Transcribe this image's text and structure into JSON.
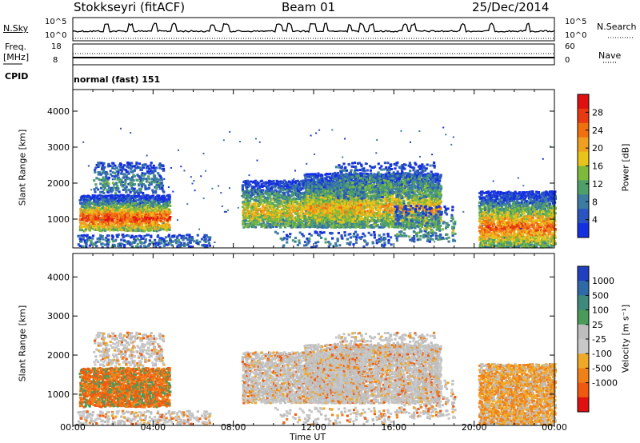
{
  "header": {
    "station": "Stokkseyri (fitACF)",
    "beam": "Beam 01",
    "date": "25/Dec/2014"
  },
  "top_panels": {
    "nsky_label": "N.Sky",
    "nsky_ticks": [
      "10^5",
      "10^0"
    ],
    "nsearch_label": "N.Search",
    "nsearch_ticks": [
      "10^5",
      "10^0"
    ],
    "freq_label_1": "Freq.",
    "freq_label_2": "[MHz]",
    "freq_ticks": [
      "18",
      "8"
    ],
    "nave_label": "Nave",
    "nave_ticks": [
      "60",
      "0"
    ],
    "cpid_label": "CPID",
    "cpid_value": "normal (fast) 151"
  },
  "colors": {
    "power_scale": [
      "#1530e0",
      "#2a55c0",
      "#3c7ca0",
      "#4ea068",
      "#7dba3c",
      "#e8c41a",
      "#f0a020",
      "#f07010",
      "#e83a10",
      "#e01010"
    ],
    "velocity_scale": [
      "#2040c0",
      "#2f6aa8",
      "#3d8a7a",
      "#4a9a5a",
      "#bebebe",
      "#c8c8c8",
      "#f0a828",
      "#f08018",
      "#f05a10",
      "#e01010"
    ]
  },
  "chart_data": [
    {
      "type": "heatmap",
      "quantity": "power",
      "ylabel": "Slant Range [km]",
      "yticks": [
        1000,
        2000,
        3000,
        4000
      ],
      "ylim": [
        200,
        4600
      ],
      "xticks": [
        "00:00",
        "04:00",
        "08:00",
        "12:00",
        "16:00",
        "20:00",
        "00:00"
      ],
      "xlim_hours": [
        0,
        24
      ],
      "colorbar_label": "Power [dB]",
      "colorbar_ticks": [
        "4",
        "8",
        "12",
        "16",
        "20",
        "24",
        "28"
      ],
      "colorbar_range": [
        0,
        32
      ]
    },
    {
      "type": "heatmap",
      "quantity": "velocity",
      "ylabel": "Slant Range [km]",
      "yticks": [
        1000,
        2000,
        3000,
        4000
      ],
      "ylim": [
        200,
        4600
      ],
      "xticks": [
        "00:00",
        "04:00",
        "08:00",
        "12:00",
        "16:00",
        "20:00",
        "00:00"
      ],
      "xlim_hours": [
        0,
        24
      ],
      "xlabel": "Time UT",
      "colorbar_label": "Velocity [m s⁻¹]",
      "colorbar_ticks": [
        "1000",
        "500",
        "100",
        "25",
        "-25",
        "-100",
        "-500",
        "-1000"
      ]
    }
  ]
}
